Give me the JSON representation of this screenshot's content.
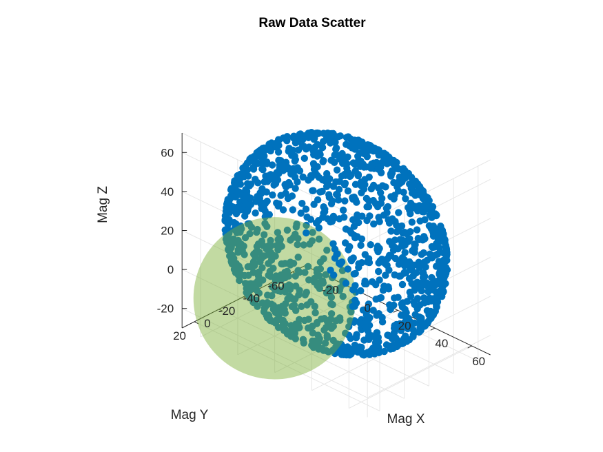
{
  "chart_data": {
    "type": "scatter",
    "title": "Raw Data Scatter",
    "xlabel": "Mag X",
    "ylabel": "Mag Y",
    "zlabel": "Mag Z",
    "x_ticks": [
      "-20",
      "0",
      "20",
      "40",
      "60"
    ],
    "y_ticks": [
      "20",
      "0",
      "-20",
      "-40",
      "-60"
    ],
    "z_ticks": [
      "60",
      "40",
      "20",
      "0",
      "-20"
    ],
    "xlim": [
      -30,
      70
    ],
    "ylim": [
      -70,
      30
    ],
    "zlim": [
      -30,
      70
    ],
    "grid": true,
    "view": "3d",
    "series": [
      {
        "kind": "points",
        "description": "raw magnetometer samples on a sphere",
        "center": [
          20,
          -20,
          20
        ],
        "radius": 50,
        "point_count": 1400,
        "color": "#0072BD"
      },
      {
        "kind": "sphere",
        "center": [
          0,
          0,
          0
        ],
        "radius": 50,
        "color": "#77AC30",
        "opacity": 0.45
      }
    ]
  }
}
